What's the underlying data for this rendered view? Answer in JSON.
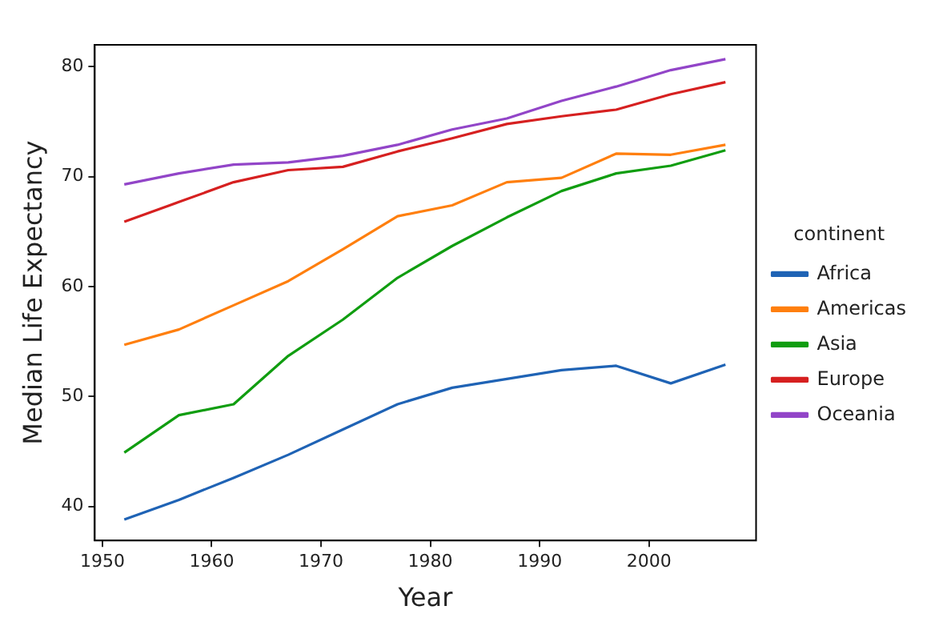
{
  "chart_data": {
    "type": "line",
    "xlabel": "Year",
    "ylabel": "Median Life Expectancy",
    "legend_title": "continent",
    "legend": "right",
    "grid": false,
    "x": [
      1952,
      1957,
      1962,
      1967,
      1972,
      1977,
      1982,
      1987,
      1992,
      1997,
      2002,
      2007
    ],
    "xlim": [
      1949.3,
      2009.8
    ],
    "xticks": [
      1950,
      1960,
      1970,
      1980,
      1990,
      2000
    ],
    "ylim": [
      36.9,
      82.0
    ],
    "yticks": [
      40,
      50,
      60,
      70,
      80
    ],
    "series": [
      {
        "name": "Africa",
        "color": "#1f63b5",
        "values": [
          38.8,
          40.6,
          42.6,
          44.7,
          47.0,
          49.3,
          50.8,
          51.6,
          52.4,
          52.8,
          51.2,
          52.9
        ]
      },
      {
        "name": "Americas",
        "color": "#ff7f0e",
        "values": [
          54.7,
          56.1,
          58.3,
          60.5,
          63.4,
          66.4,
          67.4,
          69.5,
          69.9,
          72.1,
          72.0,
          72.9
        ]
      },
      {
        "name": "Asia",
        "color": "#109d10",
        "values": [
          44.9,
          48.3,
          49.3,
          53.7,
          57.0,
          60.8,
          63.7,
          66.3,
          68.7,
          70.3,
          71.0,
          72.4
        ]
      },
      {
        "name": "Europe",
        "color": "#d62020",
        "values": [
          65.9,
          67.7,
          69.5,
          70.6,
          70.9,
          72.3,
          73.5,
          74.8,
          75.5,
          76.1,
          77.5,
          78.6
        ]
      },
      {
        "name": "Oceania",
        "color": "#9245c8",
        "values": [
          69.3,
          70.3,
          71.1,
          71.3,
          71.9,
          72.9,
          74.3,
          75.3,
          76.9,
          78.2,
          79.7,
          80.7
        ]
      }
    ]
  }
}
